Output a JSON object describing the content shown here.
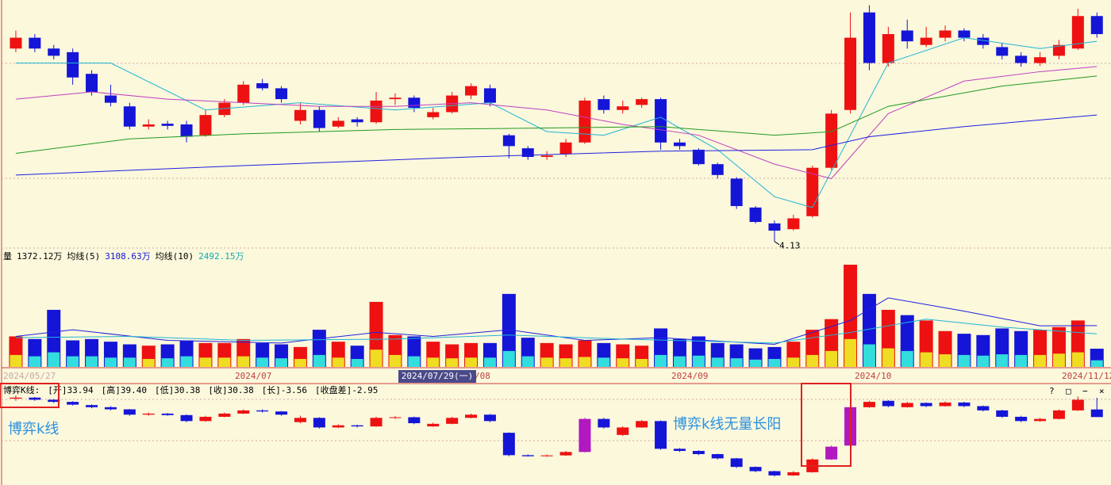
{
  "chart_data": [
    {
      "type": "candlestick",
      "up_color": "#ee1111",
      "down_color": "#1515d8",
      "ylim": [
        4.05,
        7.45
      ],
      "candles": [
        [
          6.8,
          7.05,
          6.75,
          6.95
        ],
        [
          6.95,
          7.0,
          6.75,
          6.8
        ],
        [
          6.8,
          6.85,
          6.65,
          6.7
        ],
        [
          6.75,
          6.8,
          6.3,
          6.4
        ],
        [
          6.45,
          6.5,
          6.15,
          6.2
        ],
        [
          6.15,
          6.3,
          6.0,
          6.05
        ],
        [
          6.0,
          6.05,
          5.68,
          5.72
        ],
        [
          5.72,
          5.82,
          5.68,
          5.75
        ],
        [
          5.76,
          5.8,
          5.68,
          5.73
        ],
        [
          5.75,
          5.8,
          5.5,
          5.58
        ],
        [
          5.6,
          5.95,
          5.58,
          5.88
        ],
        [
          5.88,
          6.1,
          5.85,
          6.05
        ],
        [
          6.05,
          6.35,
          6.02,
          6.3
        ],
        [
          6.32,
          6.38,
          6.22,
          6.25
        ],
        [
          6.25,
          6.28,
          6.05,
          6.1
        ],
        [
          5.8,
          6.05,
          5.75,
          5.95
        ],
        [
          5.95,
          6.0,
          5.65,
          5.7
        ],
        [
          5.72,
          5.85,
          5.7,
          5.8
        ],
        [
          5.82,
          5.85,
          5.72,
          5.78
        ],
        [
          5.78,
          6.2,
          5.76,
          6.08
        ],
        [
          6.1,
          6.18,
          6.02,
          6.12
        ],
        [
          6.12,
          6.15,
          5.92,
          5.98
        ],
        [
          5.85,
          5.98,
          5.82,
          5.92
        ],
        [
          5.92,
          6.2,
          5.9,
          6.15
        ],
        [
          6.15,
          6.32,
          6.1,
          6.28
        ],
        [
          6.25,
          6.3,
          6.0,
          6.05
        ],
        [
          5.6,
          5.62,
          5.28,
          5.45
        ],
        [
          5.42,
          5.45,
          5.26,
          5.3
        ],
        [
          5.3,
          5.38,
          5.26,
          5.32
        ],
        [
          5.34,
          5.55,
          5.3,
          5.5
        ],
        [
          5.5,
          6.12,
          5.48,
          6.08
        ],
        [
          6.1,
          6.15,
          5.9,
          5.95
        ],
        [
          5.95,
          6.08,
          5.9,
          6.0
        ],
        [
          6.02,
          6.12,
          5.98,
          6.1
        ],
        [
          6.1,
          6.12,
          5.4,
          5.5
        ],
        [
          5.5,
          5.55,
          5.4,
          5.45
        ],
        [
          5.4,
          5.42,
          5.18,
          5.2
        ],
        [
          5.2,
          5.22,
          5.0,
          5.05
        ],
        [
          5.0,
          5.02,
          4.58,
          4.62
        ],
        [
          4.6,
          4.62,
          4.38,
          4.4
        ],
        [
          4.38,
          4.42,
          4.13,
          4.28
        ],
        [
          4.3,
          4.5,
          4.28,
          4.45
        ],
        [
          4.48,
          5.18,
          4.46,
          5.15
        ],
        [
          5.15,
          5.95,
          5.12,
          5.9
        ],
        [
          5.95,
          7.3,
          5.9,
          6.95
        ],
        [
          7.3,
          7.4,
          6.5,
          6.6
        ],
        [
          6.6,
          7.1,
          6.55,
          7.0
        ],
        [
          7.05,
          7.2,
          6.8,
          6.9
        ],
        [
          6.85,
          7.1,
          6.82,
          6.95
        ],
        [
          6.95,
          7.12,
          6.9,
          7.05
        ],
        [
          7.05,
          7.08,
          6.9,
          6.95
        ],
        [
          6.95,
          7.0,
          6.8,
          6.85
        ],
        [
          6.82,
          6.88,
          6.65,
          6.7
        ],
        [
          6.7,
          6.75,
          6.55,
          6.6
        ],
        [
          6.6,
          6.75,
          6.56,
          6.68
        ],
        [
          6.7,
          6.92,
          6.65,
          6.85
        ],
        [
          6.8,
          7.35,
          6.78,
          7.25
        ],
        [
          7.25,
          7.3,
          6.95,
          7.0
        ]
      ],
      "lines": [
        {
          "color": "#22b4d4",
          "x": [
            0,
            5,
            10,
            15,
            20,
            25,
            28,
            31,
            34,
            37,
            40,
            42,
            44,
            46,
            50,
            54,
            57
          ],
          "values": [
            6.6,
            6.6,
            5.95,
            6.05,
            5.95,
            6.05,
            5.65,
            5.6,
            5.85,
            5.4,
            4.75,
            4.6,
            5.6,
            6.6,
            6.95,
            6.8,
            6.9
          ]
        },
        {
          "color": "#c040c0",
          "x": [
            0,
            4,
            8,
            12,
            16,
            20,
            24,
            28,
            32,
            36,
            40,
            43,
            46,
            50,
            54,
            57
          ],
          "values": [
            6.1,
            6.2,
            6.1,
            6.05,
            6.0,
            6.0,
            6.05,
            5.95,
            5.75,
            5.6,
            5.2,
            5.0,
            5.9,
            6.35,
            6.48,
            6.55
          ]
        },
        {
          "color": "#229922",
          "x": [
            0,
            6,
            12,
            20,
            28,
            34,
            40,
            43,
            46,
            52,
            57
          ],
          "values": [
            5.35,
            5.55,
            5.62,
            5.68,
            5.7,
            5.72,
            5.6,
            5.65,
            6.0,
            6.28,
            6.42
          ]
        },
        {
          "color": "#2020e0",
          "x": [
            0,
            12,
            24,
            34,
            42,
            45,
            50,
            57
          ],
          "values": [
            5.05,
            5.18,
            5.3,
            5.38,
            5.4,
            5.58,
            5.72,
            5.88
          ]
        }
      ]
    },
    {
      "type": "volume",
      "header": [
        {
          "text": "量",
          "color": "#000000"
        },
        {
          "text": "1372.12万",
          "color": "#000000"
        },
        {
          "text": "均线(5)",
          "color": "#000000"
        },
        {
          "text": "3108.63万",
          "color": "#1515d8"
        },
        {
          "text": "均线(10)",
          "color": "#000000"
        },
        {
          "text": "2492.15万",
          "color": "#11aaaa"
        }
      ],
      "ylim": [
        0,
        8000
      ],
      "up_color": "#ee1111",
      "down_color": "#1515d8",
      "inner_up_color": "#eedd22",
      "inner_down_color": "#33dddd",
      "values": [
        2300,
        2100,
        4300,
        2000,
        2100,
        1900,
        1700,
        1600,
        1700,
        2000,
        1800,
        1800,
        2100,
        1800,
        1700,
        1500,
        2800,
        1900,
        1600,
        4900,
        2400,
        2300,
        1900,
        1700,
        1800,
        1800,
        5500,
        2200,
        1800,
        1700,
        2000,
        1800,
        1700,
        1600,
        2900,
        2100,
        2300,
        1800,
        1700,
        1400,
        1500,
        1900,
        2800,
        3600,
        7700,
        5500,
        4300,
        3900,
        3500,
        2700,
        2500,
        2400,
        2900,
        2700,
        2800,
        3000,
        3500,
        1372.12
      ],
      "inner": [
        900,
        800,
        1100,
        800,
        800,
        700,
        700,
        600,
        650,
        800,
        700,
        700,
        800,
        700,
        650,
        600,
        900,
        700,
        600,
        1300,
        900,
        800,
        700,
        650,
        700,
        700,
        1200,
        800,
        700,
        650,
        750,
        700,
        650,
        600,
        900,
        800,
        850,
        700,
        650,
        550,
        600,
        700,
        900,
        1200,
        2100,
        1700,
        1400,
        1200,
        1100,
        950,
        900,
        850,
        950,
        900,
        900,
        1000,
        1100,
        500
      ],
      "lines": [
        {
          "color": "#2020e0",
          "x": [
            0,
            3,
            8,
            14,
            19,
            22,
            26,
            30,
            34,
            40,
            44,
            46,
            50,
            54,
            57
          ],
          "values": [
            2300,
            2800,
            2000,
            1800,
            2600,
            2300,
            2800,
            2000,
            2200,
            1700,
            3500,
            5200,
            4200,
            3100,
            3108.63
          ]
        },
        {
          "color": "#22b4d4",
          "x": [
            0,
            6,
            12,
            20,
            26,
            32,
            40,
            44,
            48,
            52,
            57
          ],
          "values": [
            2200,
            2300,
            2000,
            2100,
            2400,
            2100,
            1800,
            2600,
            3600,
            3000,
            2492.15
          ]
        }
      ],
      "date_labels": [
        "2024/05/27",
        "2024/07",
        "/08",
        "2024/09",
        "2024/10",
        "2024/11/12"
      ],
      "cursor_label": "2024/07/29(一)"
    },
    {
      "type": "candlestick",
      "header": [
        "博弈K线:",
        "[开]33.94",
        "[高]39.40",
        "[低]30.38",
        "[收]30.38",
        "[长]-3.56",
        "[收盘差]-2.95"
      ],
      "window_buttons": [
        "?",
        "□",
        "−",
        "×"
      ],
      "up_color": "#ee1111",
      "down_color": "#1515d8",
      "highlight_color": "#b018c0",
      "highlight": [
        30,
        43,
        44
      ],
      "ylim": [
        0,
        42
      ],
      "candles": [
        [
          39,
          40.5,
          38,
          39.5
        ],
        [
          39.5,
          39.8,
          38,
          38.5
        ],
        [
          38.5,
          38.8,
          37,
          37.5
        ],
        [
          37.5,
          37.8,
          35.8,
          36.2
        ],
        [
          36,
          36.3,
          34.5,
          35
        ],
        [
          35,
          35.5,
          33.5,
          34
        ],
        [
          34,
          34.2,
          31,
          31.5
        ],
        [
          31.5,
          32.5,
          31,
          32
        ],
        [
          32,
          32.3,
          31,
          31.3
        ],
        [
          31.3,
          31.6,
          28,
          28.5
        ],
        [
          28.5,
          31,
          28.2,
          30.5
        ],
        [
          30.5,
          32.5,
          30.3,
          32
        ],
        [
          32,
          34,
          31.8,
          33.5
        ],
        [
          33.5,
          34,
          32.5,
          33
        ],
        [
          33,
          33.2,
          31,
          31.5
        ],
        [
          28,
          31,
          27.5,
          30
        ],
        [
          30,
          30.3,
          25,
          25.5
        ],
        [
          25.5,
          27,
          25.2,
          26.5
        ],
        [
          26.5,
          26.8,
          25.5,
          26
        ],
        [
          26,
          30.5,
          25.8,
          30
        ],
        [
          30,
          30.8,
          29.5,
          30.3
        ],
        [
          30.3,
          30.6,
          27,
          27.5
        ],
        [
          26,
          27.8,
          25.8,
          27.2
        ],
        [
          27.2,
          30.5,
          27,
          30
        ],
        [
          30,
          32,
          29.8,
          31.5
        ],
        [
          31.5,
          31.8,
          28,
          28.5
        ],
        [
          23,
          23.2,
          12,
          12.5
        ],
        [
          12.5,
          12.8,
          11.8,
          12
        ],
        [
          12,
          12.8,
          11.8,
          12.4
        ],
        [
          12.4,
          14.5,
          12.2,
          14
        ],
        [
          14,
          30,
          13.8,
          29.5
        ],
        [
          29.5,
          30,
          25,
          25.5
        ],
        [
          22,
          26,
          21.5,
          25.5
        ],
        [
          25.5,
          29,
          25.3,
          28.5
        ],
        [
          28.5,
          28.8,
          15,
          15.5
        ],
        [
          15.5,
          15.8,
          14,
          14.5
        ],
        [
          14.5,
          14.8,
          12.5,
          13
        ],
        [
          13,
          13.2,
          10.5,
          11
        ],
        [
          11,
          11.2,
          6.5,
          7
        ],
        [
          7,
          7.2,
          4.5,
          5
        ],
        [
          5,
          5.2,
          2.5,
          3
        ],
        [
          3,
          5,
          2.8,
          4.5
        ],
        [
          4.5,
          11,
          4.3,
          10.5
        ],
        [
          10.5,
          17,
          10.3,
          16.5
        ],
        [
          17,
          36,
          16.8,
          35
        ],
        [
          35,
          38,
          34.8,
          37.5
        ],
        [
          38,
          38.3,
          35,
          35.5
        ],
        [
          35,
          37.5,
          34.8,
          37
        ],
        [
          37,
          37.3,
          35,
          35.5
        ],
        [
          35.5,
          37.8,
          35.3,
          37.2
        ],
        [
          37.2,
          37.5,
          35,
          35.5
        ],
        [
          35.5,
          35.8,
          33,
          33.5
        ],
        [
          33.5,
          33.8,
          30,
          30.5
        ],
        [
          30.5,
          31,
          28,
          28.5
        ],
        [
          28.5,
          30,
          28.2,
          29.5
        ],
        [
          29.5,
          34,
          29.3,
          33.5
        ],
        [
          33.5,
          40,
          33.3,
          38.5
        ],
        [
          33.94,
          39.4,
          30.38,
          30.38
        ]
      ],
      "annotations": [
        "博弈k线",
        "博弈k线无量长阳"
      ]
    }
  ]
}
